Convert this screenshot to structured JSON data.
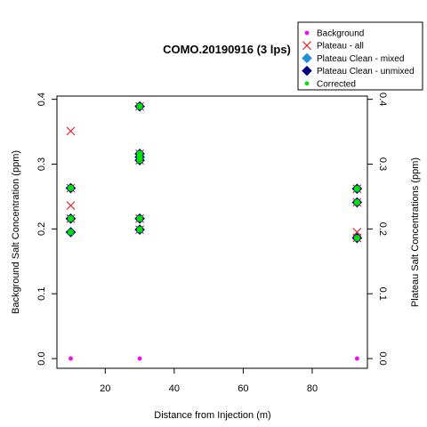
{
  "chart_data": {
    "type": "scatter",
    "title": "COMO.20190916 (3 lps)",
    "xlabel": "Distance from Injection (m)",
    "ylabel_left": "Background Salt Concentration (ppm)",
    "ylabel_right": "Plateau Salt Concentrations (ppm)",
    "xlim": [
      6,
      96
    ],
    "ylim": [
      -0.015,
      0.405
    ],
    "x_ticks": [
      20,
      40,
      60,
      80
    ],
    "y_ticks": [
      0.0,
      0.1,
      0.2,
      0.3,
      0.4
    ],
    "y_tick_labels": [
      "0.0",
      "0.1",
      "0.2",
      "0.3",
      "0.4"
    ],
    "grid": false,
    "legend_position": "top-right",
    "series": [
      {
        "name": "Background",
        "marker": "dot",
        "color": "#ff00ff",
        "x": [
          10,
          30,
          93
        ],
        "y": [
          0.0,
          0.0,
          0.0
        ]
      },
      {
        "name": "Plateau - all",
        "marker": "x",
        "color": "#e8161f",
        "x": [
          10,
          10,
          10,
          10,
          30,
          30,
          30,
          30,
          30,
          30,
          93,
          93,
          93,
          93
        ],
        "y": [
          0.351,
          0.263,
          0.236,
          0.216,
          0.389,
          0.316,
          0.311,
          0.306,
          0.216,
          0.199,
          0.262,
          0.241,
          0.195,
          0.186
        ]
      },
      {
        "name": "Plateau Clean - mixed",
        "marker": "diamond",
        "color": "#1f8fd6",
        "x": [
          10,
          10,
          10,
          30,
          30,
          30,
          30,
          30,
          30,
          93,
          93,
          93
        ],
        "y": [
          0.263,
          0.216,
          0.195,
          0.389,
          0.316,
          0.311,
          0.306,
          0.216,
          0.199,
          0.262,
          0.241,
          0.186
        ]
      },
      {
        "name": "Plateau Clean - unmixed",
        "marker": "diamond",
        "color": "#000080",
        "x": [
          10,
          10,
          10,
          30,
          30,
          30,
          30,
          30,
          30,
          93,
          93,
          93
        ],
        "y": [
          0.263,
          0.216,
          0.195,
          0.389,
          0.316,
          0.311,
          0.306,
          0.216,
          0.199,
          0.262,
          0.241,
          0.186
        ]
      },
      {
        "name": "Corrected",
        "marker": "dot",
        "color": "#00e000",
        "x": [
          10,
          10,
          10,
          30,
          30,
          30,
          30,
          30,
          30,
          93,
          93,
          93
        ],
        "y": [
          0.263,
          0.216,
          0.195,
          0.389,
          0.316,
          0.311,
          0.306,
          0.216,
          0.199,
          0.262,
          0.241,
          0.186
        ]
      }
    ]
  }
}
